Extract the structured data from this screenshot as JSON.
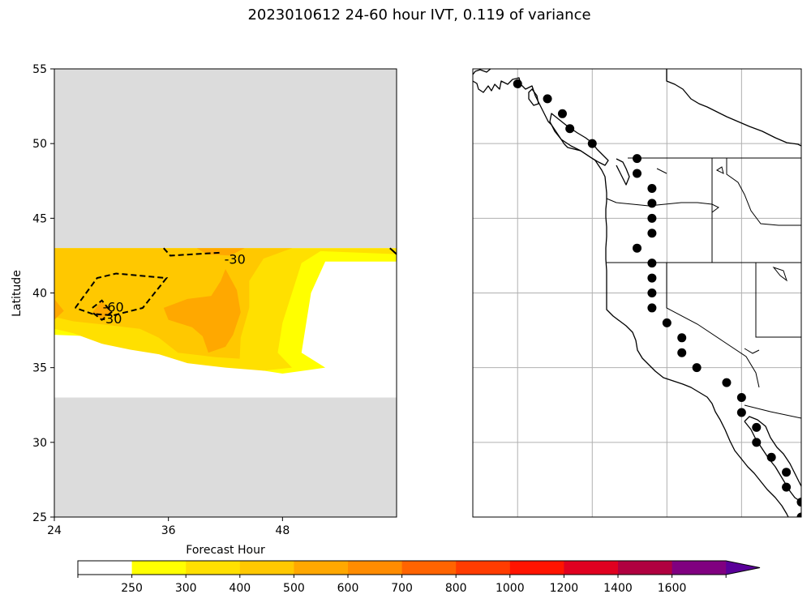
{
  "title": "2023010612 24-60 hour IVT, 0.119 of variance",
  "chart_data": [
    {
      "type": "contour",
      "xlabel": "Forecast Hour",
      "ylabel": "Latitude",
      "xlim": [
        24,
        60
      ],
      "ylim": [
        25,
        55
      ],
      "xticks": [
        "24",
        "36",
        "48"
      ],
      "yticks": [
        "25",
        "30",
        "35",
        "40",
        "45",
        "50",
        "55"
      ],
      "x_tick_values": [
        24,
        36,
        48
      ],
      "y_tick_values": [
        25,
        30,
        35,
        40,
        45,
        50,
        55
      ],
      "grid": false,
      "data_band_lat": [
        33,
        43
      ],
      "masked_fill": "#dcdcdc",
      "filled_regions": [
        {
          "level": 250,
          "color": "#ffff00",
          "points": [
            [
              24,
              43
            ],
            [
              60,
              43
            ],
            [
              60,
              42.1
            ],
            [
              52.5,
              42.1
            ],
            [
              51,
              40
            ],
            [
              50.5,
              38
            ],
            [
              50,
              36
            ],
            [
              52.5,
              35
            ],
            [
              48,
              34.6
            ],
            [
              44,
              35
            ],
            [
              39,
              35.6
            ],
            [
              36,
              36
            ],
            [
              33,
              36.5
            ],
            [
              30,
              37.2
            ],
            [
              28,
              37.1
            ],
            [
              24,
              37.2
            ]
          ]
        },
        {
          "level": 300,
          "color": "#ffe000",
          "points": [
            [
              24,
              43
            ],
            [
              60,
              43
            ],
            [
              60,
              42.6
            ],
            [
              52,
              42.8
            ],
            [
              50,
              42
            ],
            [
              49,
              40
            ],
            [
              48,
              38
            ],
            [
              47.5,
              36
            ],
            [
              49,
              35
            ],
            [
              46,
              34.8
            ],
            [
              42,
              35
            ],
            [
              38,
              35.3
            ],
            [
              35,
              35.9
            ],
            [
              32,
              36.2
            ],
            [
              29,
              36.6
            ],
            [
              26,
              37.3
            ],
            [
              24,
              37.6
            ]
          ]
        },
        {
          "level": 400,
          "color": "#ffc800",
          "points": [
            [
              24,
              43
            ],
            [
              49,
              43
            ],
            [
              46,
              42.3
            ],
            [
              44.5,
              40.8
            ],
            [
              44.5,
              39
            ],
            [
              43.6,
              37
            ],
            [
              43.5,
              35.6
            ],
            [
              41,
              35.7
            ],
            [
              37,
              36
            ],
            [
              35,
              37
            ],
            [
              33,
              37.6
            ],
            [
              29,
              37.9
            ],
            [
              26,
              38.1
            ],
            [
              24,
              38.4
            ]
          ]
        },
        {
          "level": 500,
          "color": "#ffa800",
          "points": [
            [
              42,
              41.6
            ],
            [
              43.2,
              40.2
            ],
            [
              43.6,
              38.7
            ],
            [
              42.8,
              37.2
            ],
            [
              42,
              36.4
            ],
            [
              40.2,
              36
            ],
            [
              39.6,
              37.1
            ],
            [
              38.5,
              37.7
            ],
            [
              36,
              38.2
            ],
            [
              35.5,
              39
            ],
            [
              38,
              39.6
            ],
            [
              40.5,
              39.8
            ],
            [
              41.5,
              40.8
            ]
          ]
        },
        {
          "level": 500,
          "color": "#ffa800",
          "points": [
            [
              39,
              43
            ],
            [
              44,
              43
            ],
            [
              42.5,
              42.5
            ],
            [
              40,
              42.6
            ]
          ]
        },
        {
          "level": 500,
          "color": "#ffa800",
          "points": [
            [
              24,
              39.6
            ],
            [
              25,
              38.8
            ],
            [
              24,
              38.2
            ]
          ]
        },
        {
          "level": 500,
          "color": "#ffa800",
          "points": [
            [
              29,
              39.5
            ],
            [
              30,
              38.7
            ],
            [
              29,
              38.2
            ],
            [
              28,
              38.7
            ]
          ]
        }
      ],
      "contour_lines": [
        {
          "value": -30,
          "label": "-30",
          "style": "dashed",
          "points": [
            [
              35.5,
              43
            ],
            [
              36.2,
              42.5
            ],
            [
              41.5,
              42.7
            ]
          ]
        },
        {
          "value": -30,
          "label": "-30",
          "style": "dashed",
          "points": [
            [
              28,
              39
            ],
            [
              29,
              39.5
            ],
            [
              30,
              38.7
            ],
            [
              29,
              38.2
            ],
            [
              28,
              38.7
            ]
          ]
        },
        {
          "value": -60,
          "label": "-60",
          "style": "dashed",
          "points": [
            [
              26.2,
              39
            ],
            [
              28.5,
              41
            ],
            [
              30.5,
              41.3
            ],
            [
              35.8,
              41
            ],
            [
              33.3,
              39
            ],
            [
              30.2,
              38.5
            ],
            [
              28,
              38.6
            ],
            [
              26.2,
              39
            ]
          ]
        },
        {
          "value": -30,
          "label": "",
          "style": "solid",
          "points": [
            [
              59.3,
              43
            ],
            [
              60,
              42.6
            ]
          ]
        }
      ],
      "contour_labels": [
        {
          "text": "-30",
          "x": 43,
          "y": 42.2
        },
        {
          "text": "-60",
          "x": 30.2,
          "y": 39
        },
        {
          "text": "-30",
          "x": 30,
          "y": 38.2
        }
      ]
    },
    {
      "type": "map",
      "grid": true,
      "lon_range": [
        -136,
        -114
      ],
      "lat_range": [
        25,
        55
      ],
      "gridline_lons": [
        -133,
        -128,
        -123,
        -118
      ],
      "gridline_lats": [
        30,
        35,
        40,
        45,
        50
      ],
      "markers": [
        [
          -133,
          54
        ],
        [
          -131,
          53
        ],
        [
          -130,
          52
        ],
        [
          -129.5,
          51
        ],
        [
          -128,
          50
        ],
        [
          -125,
          49
        ],
        [
          -125,
          48
        ],
        [
          -124,
          47
        ],
        [
          -124,
          46
        ],
        [
          -124,
          45
        ],
        [
          -124,
          44
        ],
        [
          -125,
          43
        ],
        [
          -124,
          42
        ],
        [
          -124,
          41
        ],
        [
          -124,
          40
        ],
        [
          -124,
          39
        ],
        [
          -123,
          38
        ],
        [
          -122,
          37
        ],
        [
          -122,
          36
        ],
        [
          -121,
          35
        ],
        [
          -119,
          34
        ],
        [
          -118,
          33
        ],
        [
          -118,
          32
        ],
        [
          -117,
          31
        ],
        [
          -117,
          30
        ],
        [
          -116,
          29
        ],
        [
          -115,
          28
        ],
        [
          -115,
          27
        ],
        [
          -114,
          26
        ],
        [
          -114,
          25
        ]
      ]
    }
  ],
  "colorbar": {
    "type": "colorbar",
    "extend": "max",
    "levels": [
      0,
      250,
      300,
      400,
      500,
      600,
      700,
      800,
      1000,
      1200,
      1400,
      1600
    ],
    "tick_labels": [
      "250",
      "300",
      "400",
      "500",
      "600",
      "700",
      "800",
      "1000",
      "1200",
      "1400",
      "1600"
    ],
    "colors": [
      "#ffffff",
      "#ffff00",
      "#ffe000",
      "#ffc800",
      "#ffa800",
      "#ff8c00",
      "#ff6400",
      "#ff3c00",
      "#ff1400",
      "#e00020",
      "#b00040",
      "#800080",
      "#5a0099"
    ]
  }
}
